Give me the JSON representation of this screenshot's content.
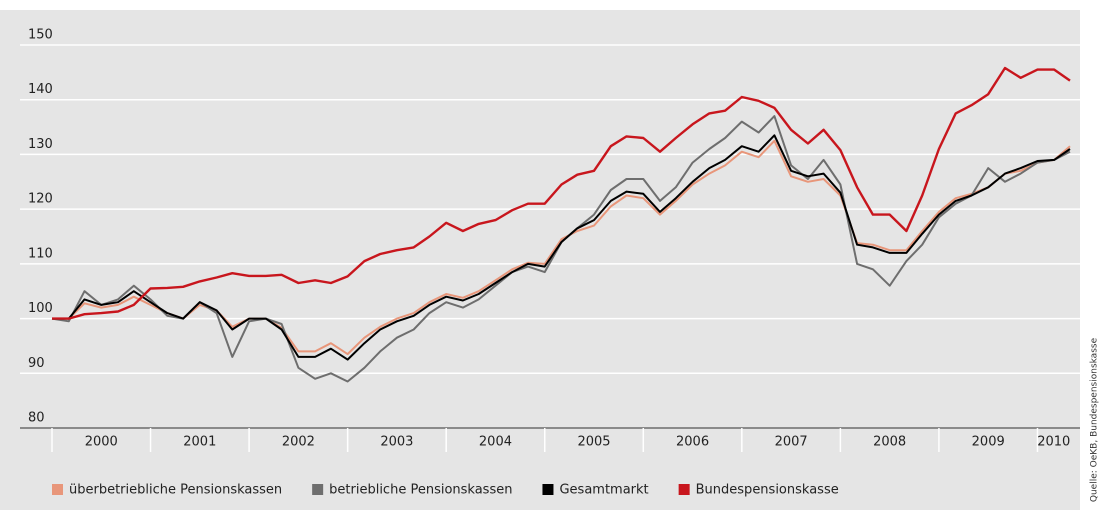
{
  "chart_data": {
    "type": "line",
    "source": "Quelle: OeKB, Bundespensionskasse",
    "x": [
      2000,
      2000.17,
      2000.33,
      2000.5,
      2000.67,
      2000.83,
      2001,
      2001.17,
      2001.33,
      2001.5,
      2001.67,
      2001.83,
      2002,
      2002.17,
      2002.33,
      2002.5,
      2002.67,
      2002.83,
      2003,
      2003.17,
      2003.33,
      2003.5,
      2003.67,
      2003.83,
      2004,
      2004.17,
      2004.33,
      2004.5,
      2004.67,
      2004.83,
      2005,
      2005.17,
      2005.33,
      2005.5,
      2005.67,
      2005.83,
      2006,
      2006.17,
      2006.33,
      2006.5,
      2006.67,
      2006.83,
      2007,
      2007.17,
      2007.33,
      2007.5,
      2007.67,
      2007.83,
      2008,
      2008.17,
      2008.33,
      2008.5,
      2008.67,
      2008.83,
      2009,
      2009.17,
      2009.33,
      2009.5,
      2009.67,
      2009.83,
      2010,
      2010.17,
      2010.33
    ],
    "series": [
      {
        "name": "überbetriebliche Pensionskassen",
        "color": "#e8967a",
        "values": [
          100,
          100,
          102.8,
          102,
          102.5,
          104,
          102.5,
          101,
          100,
          102.5,
          101.5,
          98.5,
          100,
          100,
          98.3,
          94,
          94,
          95.5,
          93.5,
          96.5,
          98.5,
          100,
          101,
          103,
          104.5,
          103.8,
          105,
          107,
          109,
          110.2,
          110,
          114.5,
          116,
          117,
          120.5,
          122.5,
          122,
          119,
          121.5,
          124.5,
          126.5,
          128,
          130.5,
          129.5,
          132.5,
          126,
          125,
          125.5,
          122.5,
          113.8,
          113.5,
          112.5,
          112.5,
          116,
          119.5,
          122,
          122.8,
          124,
          126.5,
          127,
          128.5,
          129,
          131.5
        ]
      },
      {
        "name": "betriebliche Pensionskassen",
        "color": "#6e6e6e",
        "values": [
          100,
          99.5,
          105,
          102.5,
          103.5,
          106,
          103.5,
          100.5,
          100,
          103,
          101,
          93,
          99.5,
          100,
          99,
          91,
          89,
          90,
          88.5,
          91,
          94,
          96.5,
          98,
          101,
          103,
          102,
          103.5,
          106,
          108.5,
          109.5,
          108.5,
          114,
          116.5,
          119,
          123.5,
          125.5,
          125.5,
          121.5,
          124,
          128.5,
          131,
          133,
          136,
          134,
          137,
          128,
          125.5,
          129,
          124.5,
          110,
          109,
          106,
          110.5,
          113.5,
          118.5,
          121,
          122.5,
          127.5,
          125,
          126.5,
          128.5,
          129,
          130.5
        ]
      },
      {
        "name": "Gesamtmarkt",
        "color": "#000000",
        "values": [
          100,
          100,
          103.5,
          102.5,
          103,
          105,
          103,
          101,
          100,
          103,
          101.5,
          98,
          100,
          100,
          98,
          93,
          93,
          94.5,
          92.5,
          95.5,
          98,
          99.5,
          100.5,
          102.5,
          104,
          103.3,
          104.5,
          106.5,
          108.5,
          110,
          109.5,
          114,
          116.5,
          118,
          121.5,
          123.2,
          122.8,
          119.5,
          122,
          125,
          127.5,
          129,
          131.5,
          130.5,
          133.5,
          127,
          126,
          126.5,
          123,
          113.5,
          113,
          112,
          112,
          115.5,
          119,
          121.5,
          122.5,
          124,
          126.5,
          127.5,
          128.8,
          129,
          131
        ]
      },
      {
        "name": "Bundespensionskasse",
        "color": "#c8161d",
        "values": [
          100,
          100,
          100.8,
          101,
          101.3,
          102.5,
          105.5,
          105.6,
          105.8,
          106.8,
          107.5,
          108.3,
          107.8,
          107.8,
          108,
          106.5,
          107,
          106.5,
          107.7,
          110.5,
          111.8,
          112.5,
          113,
          115,
          117.5,
          116,
          117.3,
          118,
          119.8,
          121,
          121,
          124.5,
          126.3,
          127,
          131.5,
          133.3,
          133,
          130.5,
          133,
          135.5,
          137.5,
          138,
          140.5,
          139.8,
          138.5,
          134.5,
          132,
          134.5,
          130.8,
          124,
          119,
          119,
          116,
          122.5,
          131,
          137.5,
          139,
          141,
          145.8,
          144,
          145.5,
          145.5,
          143.5
        ]
      }
    ],
    "xlim": [
      2000,
      2010.33
    ],
    "xticks": [
      2000,
      2001,
      2002,
      2003,
      2004,
      2005,
      2006,
      2007,
      2008,
      2009,
      2010
    ],
    "ylim": [
      80,
      150
    ],
    "yticks": [
      80,
      90,
      100,
      110,
      120,
      130,
      140,
      150
    ],
    "grid": true,
    "legend": "bottom"
  }
}
